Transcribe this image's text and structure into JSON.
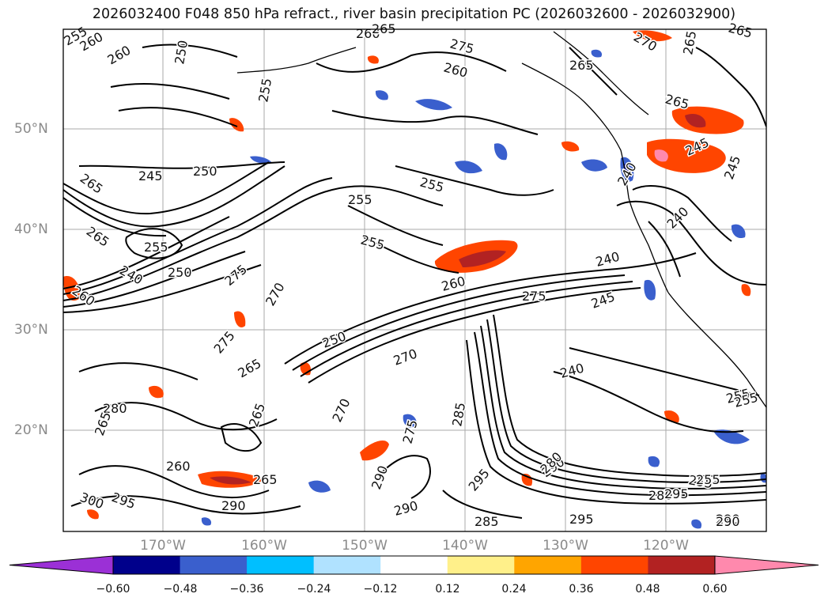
{
  "title": "2026032400 F048 850 hPa refract., river basin precipitation PC (2026032600 - 2026032900)",
  "lat_labels": [
    "50°N",
    "40°N",
    "30°N",
    "20°N"
  ],
  "lon_labels": [
    "170°W",
    "160°W",
    "150°W",
    "140°W",
    "130°W",
    "120°W"
  ],
  "colorbar": {
    "colors": [
      "#9b30d6",
      "#00008b",
      "#3a5fcd",
      "#00bfff",
      "#b0e2ff",
      "#ffffff",
      "#fff08a",
      "#ffa500",
      "#ff4500",
      "#b22222",
      "#ff89ad"
    ],
    "ticks": [
      "−0.60",
      "−0.48",
      "−0.36",
      "−0.24",
      "−0.12",
      "0.12",
      "0.24",
      "0.36",
      "0.48",
      "0.60"
    ]
  },
  "contour_labels": [
    "255",
    "260",
    "260",
    "260",
    "250",
    "255",
    "270",
    "265",
    "265",
    "260",
    "265",
    "265",
    "245",
    "250",
    "255",
    "265",
    "265",
    "260",
    "255",
    "255",
    "240",
    "250",
    "275",
    "270",
    "275",
    "265",
    "255",
    "265",
    "260",
    "250",
    "270",
    "275",
    "240",
    "245",
    "240",
    "240",
    "245",
    "240",
    "245",
    "255",
    "255",
    "280",
    "265",
    "265",
    "270",
    "285",
    "290",
    "295",
    "300",
    "295",
    "290",
    "290",
    "275",
    "260",
    "265",
    "280",
    "285",
    "290",
    "295",
    "275",
    "255",
    "290",
    "295",
    "280",
    "255",
    "290"
  ]
}
